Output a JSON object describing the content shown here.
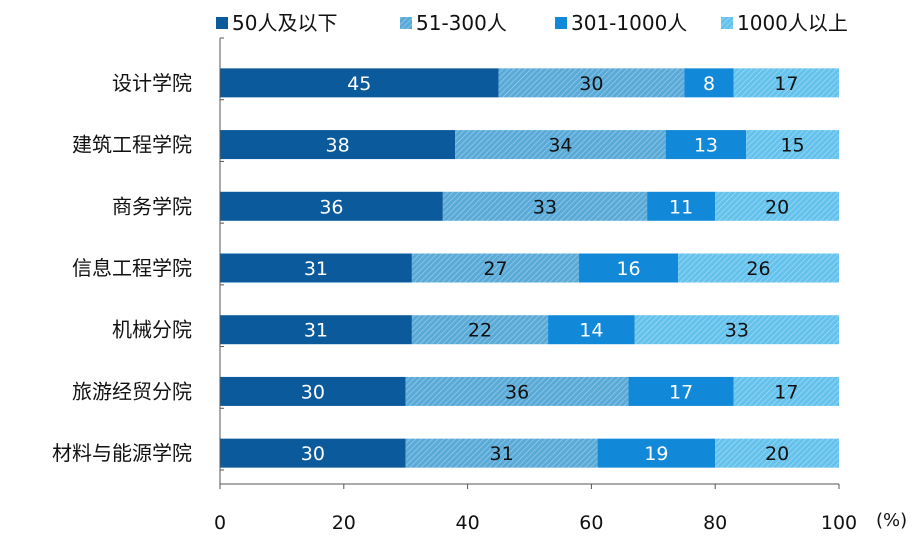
{
  "chart_data": {
    "type": "bar",
    "orientation": "horizontal",
    "stacked": true,
    "categories": [
      "设计学院",
      "建筑工程学院",
      "商务学院",
      "信息工程学院",
      "机械分院",
      "旅游经贸分院",
      "材料与能源学院"
    ],
    "series": [
      {
        "name": "50人及以下",
        "values": [
          45,
          38,
          36,
          31,
          31,
          30,
          30
        ],
        "color": "#0a5a9c",
        "label_color": "#ffffff",
        "pattern": false
      },
      {
        "name": "51-300人",
        "values": [
          30,
          34,
          33,
          27,
          22,
          36,
          31
        ],
        "color": "#5aaad8",
        "label_color": "#111111",
        "pattern": true
      },
      {
        "name": "301-1000人",
        "values": [
          8,
          13,
          11,
          16,
          14,
          17,
          19
        ],
        "color": "#1288d8",
        "label_color": "#ffffff",
        "pattern": false
      },
      {
        "name": "1000人以上",
        "values": [
          17,
          15,
          20,
          26,
          33,
          17,
          20
        ],
        "color": "#64c2ec",
        "label_color": "#111111",
        "pattern": true
      }
    ],
    "xticks": [
      0,
      20,
      40,
      60,
      80,
      100
    ],
    "xlim": [
      0,
      100
    ],
    "xunit": "(%)",
    "legend_position": "top",
    "grid": false
  }
}
